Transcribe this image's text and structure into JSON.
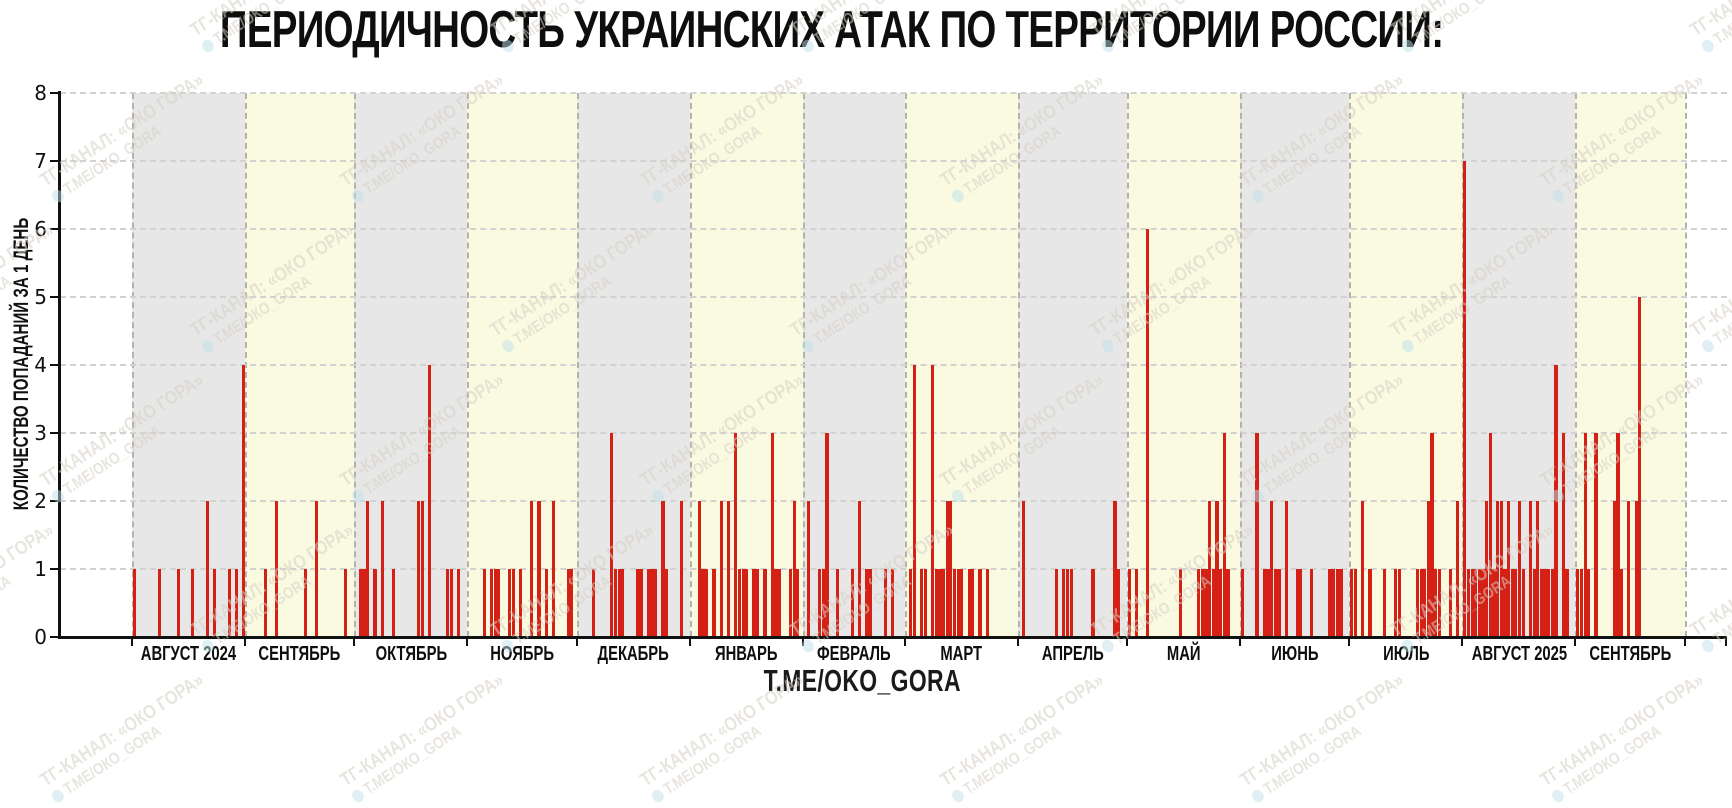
{
  "title": "ПЕРИОДИЧНОСТЬ УКРАИНСКИХ АТАК ПО ТЕРРИТОРИИ РОССИИ:",
  "footer": "T.ME/OKO_GORA",
  "watermark": {
    "line1": "ТГ-КАНАЛ: «ОКО ГОРА»",
    "line2": "Т.МЕ/ОКО_GORA"
  },
  "chart_data": {
    "type": "bar",
    "title": "ПЕРИОДИЧНОСТЬ УКРАИНСКИХ АТАК ПО ТЕРРИТОРИИ РОССИИ:",
    "ylabel": "КОЛИЧЕСТВО ПОПАДАНИЙ ЗА 1 ДЕНЬ",
    "xlabel": "",
    "ylim": [
      0,
      8
    ],
    "yticks": [
      0,
      1,
      2,
      3,
      4,
      5,
      6,
      7,
      8
    ],
    "grid": true,
    "bar_color": "#d42015",
    "band_colors": [
      "#e7e7e7",
      "#fafae1"
    ],
    "legend": null,
    "months": [
      {
        "label": "АВГУСТ 2024",
        "days": 31,
        "band": "gray",
        "hits": {
          "1": 1,
          "8": 1,
          "13": 1,
          "17": 1,
          "21": 2,
          "23": 1,
          "27": 1,
          "29": 1,
          "31": 4
        }
      },
      {
        "label": "СЕНТЯБРЬ",
        "days": 30,
        "band": "yellow",
        "hits": {
          "6": 1,
          "9": 2,
          "17": 1,
          "20": 2,
          "28": 1
        }
      },
      {
        "label": "ОКТЯБРЬ",
        "days": 31,
        "band": "gray",
        "hits": {
          "2": 1,
          "3": 1,
          "4": 2,
          "6": 1,
          "8": 2,
          "11": 1,
          "18": 2,
          "19": 2,
          "21": 4,
          "26": 1,
          "27": 1,
          "29": 1
        }
      },
      {
        "label": "НОЯБРЬ",
        "days": 30,
        "band": "yellow",
        "hits": {
          "5": 1,
          "7": 1,
          "8": 1,
          "9": 1,
          "12": 1,
          "13": 1,
          "15": 1,
          "18": 2,
          "20": 2,
          "22": 1,
          "24": 2,
          "28": 1,
          "29": 1
        }
      },
      {
        "label": "ДЕКАБРЬ",
        "days": 31,
        "band": "gray",
        "hits": {
          "5": 1,
          "10": 3,
          "11": 1,
          "12": 1,
          "13": 1,
          "17": 1,
          "18": 1,
          "20": 1,
          "21": 1,
          "22": 1,
          "24": 2,
          "25": 1,
          "29": 2
        }
      },
      {
        "label": "ЯНВАРЬ",
        "days": 31,
        "band": "yellow",
        "hits": {
          "3": 2,
          "4": 1,
          "5": 1,
          "7": 1,
          "9": 2,
          "11": 2,
          "13": 3,
          "14": 1,
          "15": 1,
          "16": 1,
          "18": 1,
          "19": 1,
          "21": 1,
          "23": 3,
          "24": 1,
          "25": 1,
          "28": 1,
          "29": 2,
          "30": 1
        }
      },
      {
        "label": "ФЕВРАЛЬ",
        "days": 28,
        "band": "gray",
        "hits": {
          "2": 2,
          "5": 1,
          "6": 1,
          "7": 3,
          "10": 1,
          "14": 1,
          "16": 2,
          "18": 1,
          "19": 1,
          "23": 1,
          "25": 1
        }
      },
      {
        "label": "МАРТ",
        "days": 31,
        "band": "yellow",
        "hits": {
          "2": 1,
          "3": 4,
          "5": 1,
          "6": 1,
          "8": 4,
          "9": 1,
          "10": 1,
          "11": 1,
          "12": 2,
          "13": 2,
          "14": 1,
          "15": 1,
          "16": 1,
          "18": 1,
          "19": 1,
          "21": 1,
          "23": 1
        }
      },
      {
        "label": "АПРЕЛЬ",
        "days": 30,
        "band": "gray",
        "hits": {
          "2": 2,
          "11": 1,
          "13": 1,
          "14": 1,
          "15": 1,
          "21": 1,
          "27": 2,
          "28": 1
        }
      },
      {
        "label": "МАЙ",
        "days": 31,
        "band": "yellow",
        "hits": {
          "1": 1,
          "3": 1,
          "6": 6,
          "15": 1,
          "20": 1,
          "21": 1,
          "22": 1,
          "23": 2,
          "24": 1,
          "25": 2,
          "26": 1,
          "27": 3,
          "28": 1
        }
      },
      {
        "label": "ИЮНЬ",
        "days": 30,
        "band": "gray",
        "hits": {
          "1": 1,
          "5": 3,
          "7": 1,
          "8": 1,
          "9": 2,
          "10": 1,
          "11": 1,
          "13": 2,
          "16": 1,
          "17": 1,
          "20": 1,
          "25": 1,
          "26": 1,
          "27": 1,
          "28": 1
        }
      },
      {
        "label": "ИЮЛЬ",
        "days": 31,
        "band": "yellow",
        "hits": {
          "1": 1,
          "2": 1,
          "4": 2,
          "6": 1,
          "10": 1,
          "13": 1,
          "14": 1,
          "19": 1,
          "20": 1,
          "21": 1,
          "22": 2,
          "23": 3,
          "24": 1,
          "25": 1,
          "28": 1,
          "30": 2
        }
      },
      {
        "label": "АВГУСТ 2025",
        "days": 31,
        "band": "gray",
        "hits": {
          "1": 7,
          "2": 1,
          "3": 1,
          "4": 1,
          "5": 1,
          "6": 1,
          "7": 2,
          "8": 3,
          "9": 1,
          "10": 2,
          "11": 2,
          "12": 1,
          "13": 2,
          "14": 1,
          "15": 1,
          "16": 2,
          "17": 1,
          "19": 2,
          "20": 1,
          "21": 2,
          "22": 1,
          "23": 1,
          "24": 1,
          "25": 1,
          "26": 4,
          "28": 3,
          "29": 1
        }
      },
      {
        "label": "СЕНТЯБРЬ",
        "days": 30,
        "band": "yellow",
        "hits": {
          "1": 1,
          "2": 1,
          "3": 3,
          "4": 1,
          "6": 3,
          "11": 2,
          "12": 3,
          "13": 1,
          "15": 2,
          "17": 2,
          "18": 5
        }
      }
    ]
  }
}
